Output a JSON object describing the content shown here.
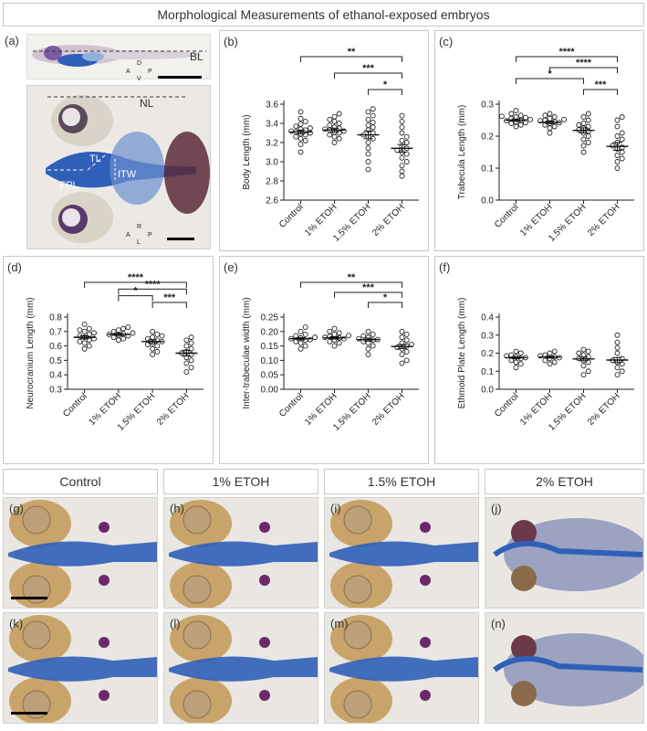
{
  "figure_title": "Morphological Measurements of ethanol-exposed embryos",
  "panel_labels": {
    "a": "(a)",
    "b": "(b)",
    "c": "(c)",
    "d": "(d)",
    "e": "(e)",
    "f": "(f)",
    "g": "(g)",
    "h": "(h)",
    "i": "(i)",
    "j": "(j)",
    "k": "(k)",
    "l": "(l)",
    "m": "(m)",
    "n": "(n)"
  },
  "panel_a": {
    "bl": "BL",
    "nl": "NL",
    "tl": "TL",
    "itw": "ITW",
    "epl": "EPL",
    "compass_top": {
      "up": "D",
      "down": "V",
      "left": "A",
      "right": "P"
    },
    "compass_bottom": {
      "up": "R",
      "down": "L",
      "left": "A",
      "right": "P"
    }
  },
  "condition_headers": [
    "Control",
    "1% ETOH",
    "1.5% ETOH",
    "2% ETOH"
  ],
  "colors": {
    "cartilage_blue": "#2f5fb8",
    "yolk_tan": "#c9a46a",
    "eye_dark": "#3a2a3a",
    "tissue_pale": "#e9e6e1"
  },
  "chart_data": [
    {
      "id": "b",
      "type": "scatter",
      "ylabel": "Body Length (mm)",
      "ylim": [
        2.6,
        3.6
      ],
      "yticks": [
        "2.6",
        "2.8",
        "3.0",
        "3.2",
        "3.4",
        "3.6"
      ],
      "tickvals": [
        2.6,
        2.8,
        3.0,
        3.2,
        3.4,
        3.6
      ],
      "categories": [
        "Control",
        "1% ETOH",
        "1.5% ETOH",
        "2% ETOH"
      ],
      "means": [
        3.31,
        3.33,
        3.28,
        3.14
      ],
      "sem": [
        0.02,
        0.02,
        0.04,
        0.04
      ],
      "points": [
        [
          3.1,
          3.18,
          3.22,
          3.24,
          3.26,
          3.28,
          3.29,
          3.3,
          3.31,
          3.32,
          3.33,
          3.34,
          3.35,
          3.37,
          3.39,
          3.42,
          3.45,
          3.52
        ],
        [
          3.2,
          3.24,
          3.26,
          3.28,
          3.3,
          3.31,
          3.32,
          3.33,
          3.34,
          3.35,
          3.36,
          3.38,
          3.4,
          3.42,
          3.44,
          3.47,
          3.5
        ],
        [
          2.92,
          3.0,
          3.08,
          3.14,
          3.2,
          3.24,
          3.26,
          3.28,
          3.3,
          3.33,
          3.36,
          3.38,
          3.41,
          3.44,
          3.48,
          3.52,
          3.55
        ],
        [
          2.85,
          2.9,
          2.96,
          3.0,
          3.04,
          3.08,
          3.1,
          3.12,
          3.14,
          3.16,
          3.2,
          3.22,
          3.26,
          3.3,
          3.36,
          3.42,
          3.48
        ]
      ],
      "brackets": [
        {
          "from": 0,
          "to": 3,
          "label": "**"
        },
        {
          "from": 1,
          "to": 3,
          "label": "***"
        },
        {
          "from": 2,
          "to": 3,
          "label": "*"
        }
      ]
    },
    {
      "id": "c",
      "type": "scatter",
      "ylabel": "Trabecula Length (mm)",
      "ylim": [
        0,
        0.3
      ],
      "yticks": [
        "0.0",
        "0.1",
        "0.2",
        "0.3"
      ],
      "tickvals": [
        0,
        0.1,
        0.2,
        0.3
      ],
      "categories": [
        "Control",
        "1% ETOH",
        "1.5% ETOH",
        "2% ETOH"
      ],
      "means": [
        0.25,
        0.243,
        0.218,
        0.168
      ],
      "sem": [
        0.004,
        0.004,
        0.008,
        0.012
      ],
      "points": [
        [
          0.23,
          0.235,
          0.24,
          0.242,
          0.245,
          0.248,
          0.25,
          0.252,
          0.255,
          0.258,
          0.26,
          0.262,
          0.265,
          0.27,
          0.28
        ],
        [
          0.21,
          0.225,
          0.23,
          0.235,
          0.24,
          0.242,
          0.245,
          0.248,
          0.25,
          0.252,
          0.255,
          0.26,
          0.265,
          0.27
        ],
        [
          0.15,
          0.17,
          0.18,
          0.19,
          0.2,
          0.21,
          0.215,
          0.22,
          0.225,
          0.23,
          0.235,
          0.24,
          0.25,
          0.26,
          0.27
        ],
        [
          0.1,
          0.12,
          0.13,
          0.14,
          0.15,
          0.16,
          0.165,
          0.17,
          0.18,
          0.19,
          0.2,
          0.21,
          0.23,
          0.25,
          0.26
        ]
      ],
      "brackets": [
        {
          "from": 0,
          "to": 3,
          "label": "****"
        },
        {
          "from": 1,
          "to": 3,
          "label": "****"
        },
        {
          "from": 0,
          "to": 2,
          "label": "*"
        },
        {
          "from": 2,
          "to": 3,
          "label": "***"
        }
      ]
    },
    {
      "id": "d",
      "type": "scatter",
      "ylabel": "Neurocranium Length (mm)",
      "ylim": [
        0.3,
        0.8
      ],
      "yticks": [
        "0.3",
        "0.4",
        "0.5",
        "0.6",
        "0.7",
        "0.8"
      ],
      "tickvals": [
        0.3,
        0.4,
        0.5,
        0.6,
        0.7,
        0.8
      ],
      "categories": [
        "Control",
        "1% ETOH",
        "1.5% ETOH",
        "2% ETOH"
      ],
      "means": [
        0.66,
        0.68,
        0.63,
        0.55
      ],
      "sem": [
        0.01,
        0.008,
        0.012,
        0.02
      ],
      "points": [
        [
          0.58,
          0.6,
          0.62,
          0.63,
          0.64,
          0.65,
          0.66,
          0.67,
          0.68,
          0.69,
          0.7,
          0.71,
          0.72,
          0.75
        ],
        [
          0.64,
          0.65,
          0.66,
          0.67,
          0.675,
          0.68,
          0.685,
          0.69,
          0.7,
          0.71,
          0.72,
          0.73
        ],
        [
          0.54,
          0.56,
          0.58,
          0.6,
          0.61,
          0.62,
          0.63,
          0.64,
          0.65,
          0.66,
          0.67,
          0.68,
          0.7
        ],
        [
          0.42,
          0.45,
          0.48,
          0.5,
          0.52,
          0.54,
          0.55,
          0.56,
          0.58,
          0.6,
          0.62,
          0.64,
          0.66
        ]
      ],
      "brackets": [
        {
          "from": 0,
          "to": 3,
          "label": "****"
        },
        {
          "from": 1,
          "to": 3,
          "label": "****"
        },
        {
          "from": 1,
          "to": 2,
          "label": "*"
        },
        {
          "from": 2,
          "to": 3,
          "label": "***"
        }
      ]
    },
    {
      "id": "e",
      "type": "scatter",
      "ylabel": "Inter-trabeculae width (mm)",
      "ylim": [
        0,
        0.25
      ],
      "yticks": [
        "0.00",
        "0.05",
        "0.10",
        "0.15",
        "0.20",
        "0.25"
      ],
      "tickvals": [
        0,
        0.05,
        0.1,
        0.15,
        0.2,
        0.25
      ],
      "categories": [
        "Control",
        "1% ETOH",
        "1.5% ETOH",
        "2% ETOH"
      ],
      "means": [
        0.175,
        0.178,
        0.172,
        0.148
      ],
      "sem": [
        0.004,
        0.004,
        0.005,
        0.007
      ],
      "points": [
        [
          0.14,
          0.15,
          0.16,
          0.165,
          0.17,
          0.172,
          0.175,
          0.178,
          0.18,
          0.185,
          0.19,
          0.2,
          0.215
        ],
        [
          0.15,
          0.16,
          0.165,
          0.17,
          0.175,
          0.178,
          0.18,
          0.183,
          0.186,
          0.19,
          0.195,
          0.2,
          0.21
        ],
        [
          0.12,
          0.14,
          0.15,
          0.16,
          0.165,
          0.17,
          0.172,
          0.175,
          0.18,
          0.185,
          0.19,
          0.2
        ],
        [
          0.09,
          0.1,
          0.12,
          0.13,
          0.14,
          0.145,
          0.15,
          0.155,
          0.16,
          0.17,
          0.18,
          0.19,
          0.2
        ]
      ],
      "brackets": [
        {
          "from": 0,
          "to": 3,
          "label": "**"
        },
        {
          "from": 1,
          "to": 3,
          "label": "***"
        },
        {
          "from": 2,
          "to": 3,
          "label": "*"
        }
      ]
    },
    {
      "id": "f",
      "type": "scatter",
      "ylabel": "Ethmoid Plate Length (mm)",
      "ylim": [
        0,
        0.4
      ],
      "yticks": [
        "0.0",
        "0.1",
        "0.2",
        "0.3",
        "0.4"
      ],
      "tickvals": [
        0,
        0.1,
        0.2,
        0.3,
        0.4
      ],
      "categories": [
        "Control",
        "1% ETOH",
        "1.5% ETOH",
        "2% ETOH"
      ],
      "means": [
        0.175,
        0.178,
        0.168,
        0.162
      ],
      "sem": [
        0.006,
        0.005,
        0.01,
        0.014
      ],
      "points": [
        [
          0.12,
          0.14,
          0.15,
          0.16,
          0.17,
          0.175,
          0.18,
          0.185,
          0.19,
          0.2,
          0.21
        ],
        [
          0.14,
          0.15,
          0.16,
          0.17,
          0.175,
          0.18,
          0.185,
          0.19,
          0.2,
          0.21
        ],
        [
          0.08,
          0.1,
          0.13,
          0.15,
          0.16,
          0.17,
          0.18,
          0.19,
          0.2,
          0.21,
          0.22
        ],
        [
          0.08,
          0.1,
          0.12,
          0.14,
          0.15,
          0.16,
          0.17,
          0.2,
          0.23,
          0.26,
          0.3
        ]
      ],
      "brackets": []
    }
  ]
}
